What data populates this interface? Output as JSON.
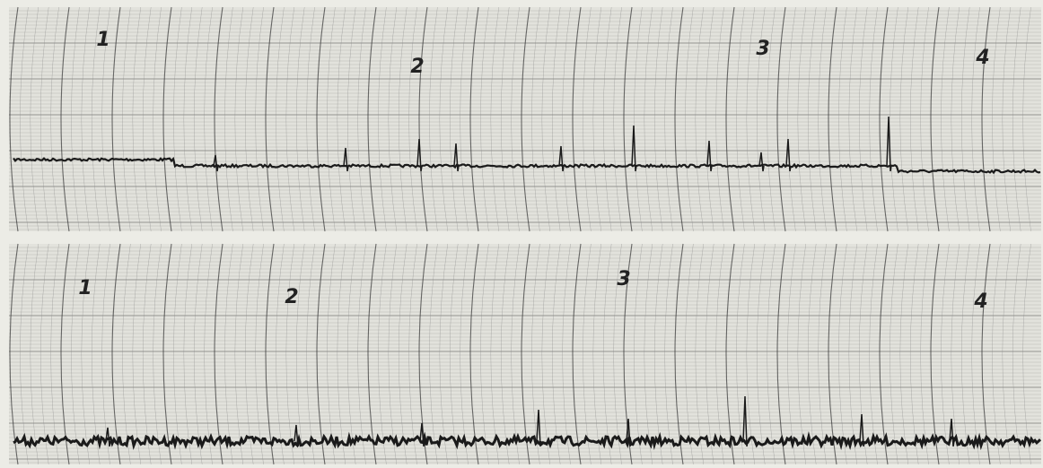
{
  "strips": [
    {
      "labels": [
        "1",
        "2",
        "3",
        "4"
      ]
    },
    {
      "labels": [
        "1",
        "2",
        "3",
        "4"
      ]
    }
  ]
}
